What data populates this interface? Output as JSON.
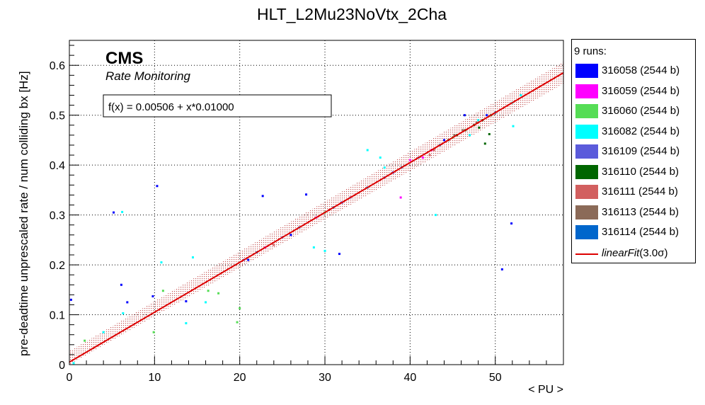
{
  "chart_data": {
    "type": "scatter",
    "title": "HLT_L2Mu23NoVtx_2Cha",
    "xlabel": "< PU >",
    "ylabel": "pre-deadtime unprescaled rate / num colliding bx [Hz]",
    "xlim": [
      0,
      58
    ],
    "ylim": [
      0,
      0.65
    ],
    "x_ticks": [
      "0",
      "10",
      "20",
      "30",
      "40",
      "50"
    ],
    "y_ticks": [
      "0",
      "0.1",
      "0.2",
      "0.3",
      "0.4",
      "0.5",
      "0.6"
    ],
    "grid": true,
    "legend_position": "right",
    "branding": {
      "experiment": "CMS",
      "subtitle": "Rate Monitoring"
    },
    "fit": {
      "label": "linearFit",
      "sigma_label": "(3.0σ)",
      "formula": "f(x) = 0.00506 + x*0.01000",
      "intercept": 0.00506,
      "slope": 0.01,
      "band_sigma": 3.0,
      "band_halfwidth": 0.022,
      "color": "#dd0000"
    },
    "legend_header": "9 runs:",
    "series": [
      {
        "name": "316058 (2544 b)",
        "color": "#0000ff",
        "points": [
          [
            0.2,
            0.13
          ],
          [
            5.2,
            0.305
          ],
          [
            6.1,
            0.16
          ],
          [
            6.8,
            0.125
          ],
          [
            9.8,
            0.137
          ],
          [
            10.3,
            0.358
          ],
          [
            13.7,
            0.127
          ],
          [
            22.7,
            0.338
          ],
          [
            27.8,
            0.341
          ],
          [
            31.7,
            0.222
          ],
          [
            46.4,
            0.5
          ],
          [
            50.8,
            0.191
          ],
          [
            51.9,
            0.283
          ],
          [
            21,
            0.21
          ],
          [
            26,
            0.26
          ],
          [
            32,
            0.325
          ],
          [
            38,
            0.385
          ],
          [
            44,
            0.45
          ],
          [
            49,
            0.5
          ]
        ]
      },
      {
        "name": "316059 (2544 b)",
        "color": "#ff00ff",
        "points": [
          [
            38.9,
            0.335
          ],
          [
            41.5,
            0.415
          ],
          [
            42.5,
            0.43
          ],
          [
            40,
            0.41
          ],
          [
            23,
            0.235
          ],
          [
            29,
            0.295
          ]
        ]
      },
      {
        "name": "316060 (2544 b)",
        "color": "#55dd55",
        "points": [
          [
            1.8,
            0.048
          ],
          [
            9.9,
            0.065
          ],
          [
            11,
            0.148
          ],
          [
            16.3,
            0.148
          ],
          [
            17.5,
            0.143
          ],
          [
            19.7,
            0.085
          ],
          [
            20,
            0.113
          ],
          [
            30,
            0.305
          ],
          [
            45,
            0.455
          ]
        ]
      },
      {
        "name": "316082 (2544 b)",
        "color": "#00ffff",
        "points": [
          [
            0.5,
            0.003
          ],
          [
            4,
            0.065
          ],
          [
            6.2,
            0.306
          ],
          [
            6.3,
            0.103
          ],
          [
            10.8,
            0.205
          ],
          [
            13.7,
            0.083
          ],
          [
            14.5,
            0.215
          ],
          [
            16,
            0.125
          ],
          [
            28.7,
            0.235
          ],
          [
            30,
            0.228
          ],
          [
            35,
            0.43
          ],
          [
            36.5,
            0.415
          ],
          [
            37,
            0.395
          ],
          [
            43,
            0.3
          ],
          [
            47,
            0.46
          ],
          [
            48,
            0.49
          ],
          [
            52.1,
            0.478
          ],
          [
            52,
            0.525
          ],
          [
            53,
            0.54
          ]
        ]
      },
      {
        "name": "316109 (2544 b)",
        "color": "#5b5bdb",
        "points": [
          [
            20.5,
            0.21
          ],
          [
            25,
            0.255
          ],
          [
            33,
            0.335
          ],
          [
            37,
            0.375
          ],
          [
            41,
            0.415
          ]
        ]
      },
      {
        "name": "316110 (2544 b)",
        "color": "#006600",
        "points": [
          [
            43.5,
            0.44
          ],
          [
            44.5,
            0.45
          ],
          [
            45.5,
            0.46
          ],
          [
            46.5,
            0.47
          ],
          [
            47.5,
            0.48
          ],
          [
            48.5,
            0.49
          ],
          [
            49.5,
            0.5
          ],
          [
            48.8,
            0.443
          ],
          [
            49.3,
            0.462
          ],
          [
            48.1,
            0.475
          ]
        ]
      },
      {
        "name": "316111 (2544 b)",
        "color": "#d25f5f",
        "points": [
          [
            42.3,
            0.42
          ],
          [
            42.8,
            0.43
          ],
          [
            24,
            0.24
          ],
          [
            30.5,
            0.31
          ]
        ]
      },
      {
        "name": "316113 (2544 b)",
        "color": "#8b6a58",
        "points": [
          [
            45.2,
            0.46
          ],
          [
            46.2,
            0.47
          ],
          [
            47.8,
            0.485
          ]
        ]
      },
      {
        "name": "316114 (2544 b)",
        "color": "#0066cc",
        "points": [
          [
            22,
            0.225
          ],
          [
            27,
            0.275
          ],
          [
            31,
            0.315
          ],
          [
            35,
            0.355
          ],
          [
            39,
            0.395
          ],
          [
            43.5,
            0.44
          ],
          [
            50,
            0.505
          ]
        ]
      }
    ]
  }
}
